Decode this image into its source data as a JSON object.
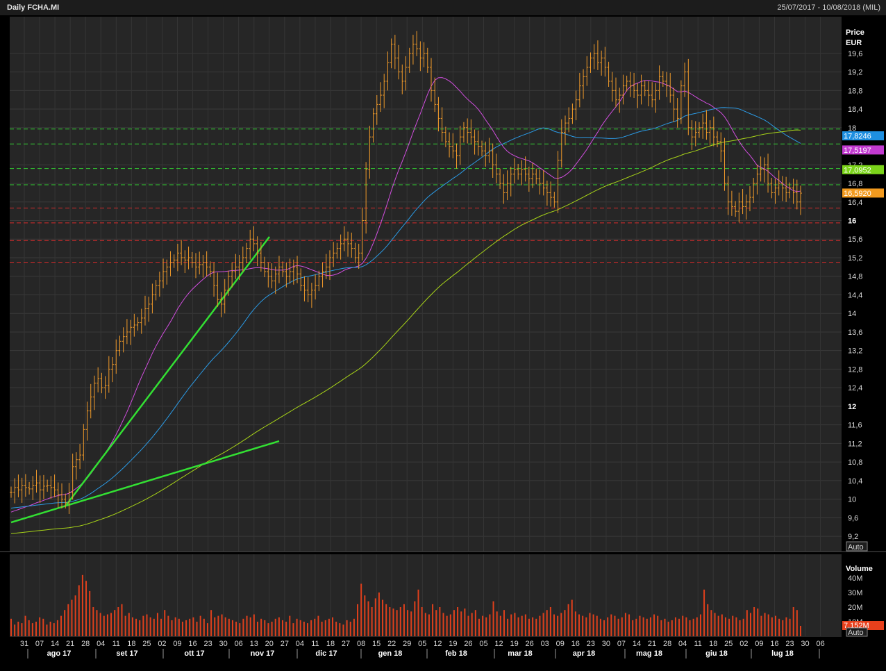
{
  "header": {
    "title": "Daily FCHA.MI",
    "date_range": "25/07/2017 - 10/08/2018 (MIL)"
  },
  "price_panel": {
    "axis_title": "Price",
    "axis_unit": "EUR",
    "auto_label": "Auto"
  },
  "volume_panel": {
    "axis_title": "Volume",
    "auto_label": "Auto",
    "ticks": [
      "10M",
      "20M",
      "30M",
      "40M"
    ],
    "last_value_label": "7,152M",
    "last_value_color": "#e8401c"
  },
  "x_axis": {
    "day_ticks": [
      "31",
      "07",
      "14",
      "21",
      "28",
      "04",
      "11",
      "18",
      "25",
      "02",
      "09",
      "16",
      "23",
      "30",
      "06",
      "13",
      "20",
      "27",
      "04",
      "11",
      "18",
      "27",
      "08",
      "15",
      "22",
      "29",
      "05",
      "12",
      "19",
      "26",
      "05",
      "12",
      "19",
      "26",
      "03",
      "09",
      "16",
      "23",
      "30",
      "07",
      "14",
      "21",
      "28",
      "04",
      "11",
      "18",
      "25",
      "02",
      "09",
      "16",
      "23",
      "30",
      "06"
    ],
    "month_labels": [
      "ago 17",
      "set 17",
      "ott 17",
      "nov 17",
      "dic 17",
      "gen 18",
      "feb 18",
      "mar 18",
      "apr 18",
      "mag 18",
      "giu 18",
      "lug 18"
    ]
  },
  "colors": {
    "background": "#262626",
    "bars": "#f09a2a",
    "ma_short": "#d24ee0",
    "ma_mid": "#2b9be6",
    "ma_long": "#a8d418",
    "trendlines": "#33e033",
    "support_lines": "#33cc33",
    "resistance_lines": "#d92b2b",
    "volume_bars": "#e0401c"
  },
  "chart_data": {
    "type": "ohlc",
    "price_axis": {
      "ticks": [
        9.2,
        9.6,
        10,
        10.4,
        10.8,
        11.2,
        11.6,
        12,
        12.4,
        12.8,
        13.2,
        13.6,
        14,
        14.4,
        14.8,
        15.2,
        15.6,
        16,
        16.4,
        16.8,
        17.2,
        18,
        18.4,
        18.8,
        19.2,
        19.6
      ],
      "tick_labels": [
        "9,2",
        "9,6",
        "10",
        "10,4",
        "10,8",
        "11,2",
        "11,6",
        "12",
        "12,4",
        "12,8",
        "13,2",
        "13,6",
        "14",
        "14,4",
        "14,8",
        "15,2",
        "15,6",
        "16",
        "16,4",
        "16,8",
        "17,2",
        "18",
        "18,4",
        "18,8",
        "19,2",
        "19,6"
      ],
      "bold_ticks": [
        12,
        16
      ],
      "ylim": [
        9.0,
        20.0
      ]
    },
    "price_labels": [
      {
        "value": 17.8246,
        "text": "17,8246",
        "color": "#1e8fe0"
      },
      {
        "value": 17.5197,
        "text": "17,5197",
        "color": "#c23ad0"
      },
      {
        "value": 17.0952,
        "text": "17,0952",
        "color": "#7bd41a"
      },
      {
        "value": 16.592,
        "text": "16,5920",
        "color": "#f29a1e"
      }
    ],
    "horizontal_levels": {
      "support_green": [
        17.97,
        17.65,
        17.12,
        16.77
      ],
      "resistance_red": [
        16.27,
        15.95,
        15.57,
        15.1
      ]
    },
    "ohlc_closes": [
      10.15,
      10.25,
      10.2,
      10.3,
      10.25,
      10.22,
      10.3,
      10.35,
      10.2,
      10.28,
      10.3,
      10.25,
      10.2,
      10.1,
      10.0,
      9.92,
      10.15,
      10.7,
      10.85,
      10.95,
      11.5,
      11.9,
      12.2,
      12.5,
      12.6,
      12.4,
      12.45,
      12.8,
      12.9,
      13.2,
      13.4,
      13.5,
      13.6,
      13.7,
      13.75,
      13.8,
      13.9,
      14.1,
      14.2,
      14.4,
      14.6,
      14.7,
      14.9,
      15.0,
      15.1,
      15.15,
      15.3,
      15.2,
      15.15,
      15.2,
      15.1,
      15.0,
      15.05,
      15.1,
      15.0,
      14.9,
      14.6,
      14.3,
      14.2,
      14.5,
      14.8,
      14.9,
      15.0,
      15.1,
      15.2,
      15.4,
      15.6,
      15.5,
      15.3,
      15.1,
      14.9,
      14.8,
      14.7,
      14.85,
      15.0,
      14.9,
      14.8,
      14.9,
      15.0,
      14.85,
      14.6,
      14.5,
      14.4,
      14.5,
      14.6,
      14.8,
      14.9,
      15.0,
      15.2,
      15.3,
      15.4,
      15.5,
      15.6,
      15.5,
      15.4,
      15.2,
      15.3,
      16.0,
      17.1,
      17.8,
      18.3,
      18.5,
      18.7,
      19.0,
      19.4,
      19.8,
      19.5,
      19.2,
      19.0,
      19.3,
      19.6,
      19.8,
      19.7,
      19.5,
      19.6,
      19.3,
      18.8,
      18.5,
      18.2,
      17.9,
      17.7,
      17.6,
      17.5,
      17.4,
      17.8,
      18.0,
      17.9,
      17.8,
      17.7,
      17.6,
      17.5,
      17.4,
      17.5,
      17.2,
      17.0,
      16.8,
      16.6,
      16.8,
      17.0,
      17.1,
      17.0,
      17.1,
      17.0,
      16.9,
      17.0,
      16.9,
      16.8,
      16.7,
      16.6,
      16.5,
      16.4,
      17.3,
      17.9,
      18.1,
      18.2,
      18.4,
      18.6,
      18.9,
      19.1,
      19.3,
      19.5,
      19.6,
      19.4,
      19.5,
      19.3,
      19.0,
      18.8,
      18.6,
      18.7,
      18.9,
      19.0,
      18.9,
      18.8,
      18.7,
      18.9,
      18.8,
      18.7,
      18.6,
      18.8,
      19.1,
      19.0,
      18.9,
      18.7,
      18.4,
      18.2,
      18.9,
      19.2,
      18.0,
      17.8,
      17.9,
      18.0,
      18.1,
      17.9,
      18.0,
      17.8,
      17.7,
      17.5,
      16.8,
      16.4,
      16.3,
      16.2,
      16.4,
      16.3,
      16.4,
      16.5,
      16.8,
      17.0,
      17.1,
      17.2,
      16.8,
      16.6,
      16.7,
      16.8,
      16.7,
      16.6,
      16.7,
      16.6,
      16.4,
      16.59
    ],
    "volume_values_m": [
      12,
      8,
      10,
      9,
      14,
      11,
      9,
      10,
      13,
      12,
      8,
      10,
      9,
      11,
      14,
      18,
      22,
      25,
      28,
      35,
      42,
      38,
      31,
      20,
      18,
      16,
      14,
      15,
      16,
      18,
      20,
      22,
      14,
      16,
      13,
      12,
      11,
      14,
      15,
      13,
      12,
      16,
      12,
      18,
      14,
      11,
      13,
      12,
      10,
      11,
      12,
      13,
      10,
      14,
      12,
      9,
      18,
      13,
      14,
      15,
      13,
      12,
      11,
      10,
      9,
      12,
      14,
      13,
      15,
      10,
      12,
      11,
      9,
      10,
      12,
      13,
      11,
      10,
      14,
      9,
      12,
      11,
      10,
      9,
      11,
      12,
      14,
      10,
      11,
      12,
      13,
      10,
      9,
      8,
      11,
      10,
      12,
      22,
      36,
      28,
      24,
      20,
      26,
      30,
      25,
      22,
      20,
      19,
      18,
      20,
      22,
      18,
      17,
      24,
      32,
      20,
      16,
      15,
      22,
      18,
      20,
      16,
      14,
      15,
      18,
      20,
      17,
      19,
      14,
      16,
      18,
      12,
      14,
      13,
      15,
      24,
      17,
      14,
      18,
      12,
      15,
      16,
      13,
      14,
      15,
      12,
      13,
      12,
      14,
      16,
      18,
      20,
      15,
      14,
      16,
      18,
      22,
      25,
      17,
      15,
      14,
      13,
      16,
      15,
      14,
      12,
      11,
      13,
      15,
      14,
      12,
      13,
      16,
      15,
      11,
      12,
      14,
      13,
      12,
      13,
      15,
      14,
      11,
      12,
      10,
      11,
      13,
      12,
      14,
      13,
      11,
      12,
      13,
      15,
      32,
      22,
      18,
      16,
      14,
      15,
      13,
      12,
      14,
      13,
      11,
      12,
      18,
      16,
      20,
      19,
      14,
      16,
      15,
      13,
      14,
      12,
      11,
      13,
      12,
      20,
      18,
      7.152
    ]
  }
}
